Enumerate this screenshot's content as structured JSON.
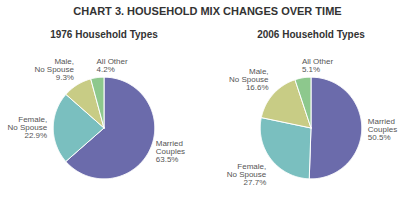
{
  "title": "CHART 3. HOUSEHOLD MIX CHANGES OVER TIME",
  "chart_data": [
    {
      "type": "pie",
      "title": "1976 Household Types",
      "categories": [
        "Married\nCouples",
        "Female,\nNo Spouse",
        "Male,\nNo Spouse",
        "All Other"
      ],
      "values": [
        63.5,
        22.9,
        9.3,
        4.2
      ],
      "value_labels": [
        "63.5%",
        "22.9%",
        "9.3%",
        "4.2%"
      ],
      "colors": [
        "#6b6bab",
        "#7abfbf",
        "#c8cc85",
        "#8dc88d"
      ],
      "data_labels": true
    },
    {
      "type": "pie",
      "title": "2006 Household Types",
      "categories": [
        "Married\nCouples",
        "Female,\nNo Spouse",
        "Male,\nNo Spouse",
        "All Other"
      ],
      "values": [
        50.5,
        27.7,
        16.6,
        5.1
      ],
      "value_labels": [
        "50.5%",
        "27.7%",
        "16.6%",
        "5.1%"
      ],
      "colors": [
        "#6b6bab",
        "#7abfbf",
        "#c8cc85",
        "#8dc88d"
      ],
      "data_labels": true
    }
  ]
}
